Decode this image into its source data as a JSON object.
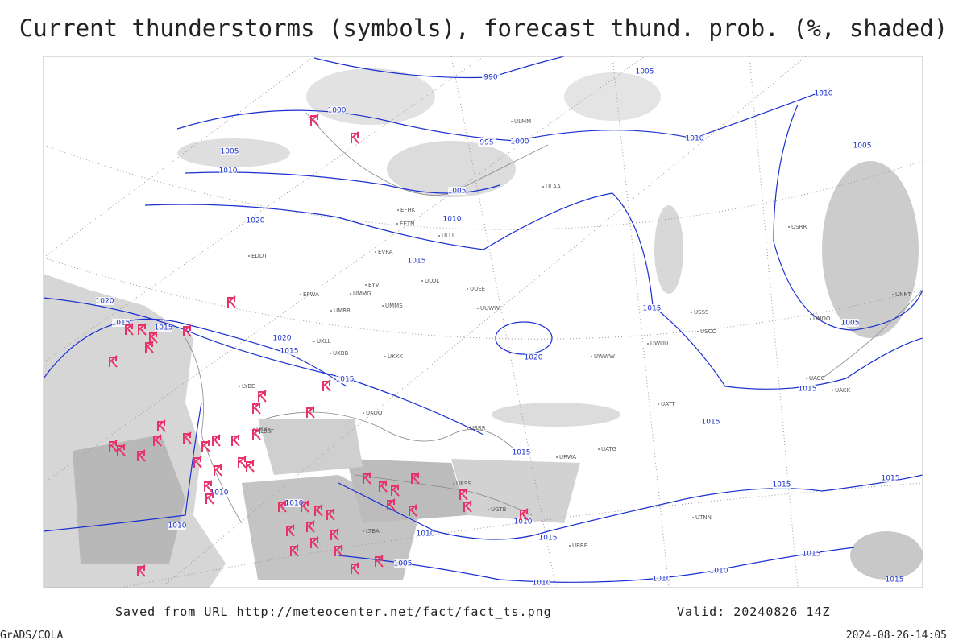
{
  "header": {
    "title": "Current thunderstorms (symbols), forecast thund. prob. (%, shaded)"
  },
  "footer": {
    "saved_from": "Saved from URL http://meteocenter.net/fact/fact_ts.png",
    "valid": "Valid: 20240826 14Z",
    "credit": "GrADS/COLA",
    "timestamp": "2024-08-26-14:05"
  },
  "isobar_labels": [
    "990",
    "1005",
    "1010",
    "1000",
    "1005",
    "995",
    "1000",
    "1010",
    "1005",
    "1010",
    "1005",
    "1010",
    "1020",
    "1015",
    "1020",
    "1015",
    "1015",
    "1020",
    "1015",
    "1020",
    "1015",
    "1015",
    "1005",
    "1015",
    "1015",
    "1015",
    "1015",
    "1010",
    "1010",
    "1010",
    "1010",
    "1015",
    "1005",
    "1010",
    "1010",
    "1010",
    "1015",
    "1015",
    "1015",
    "1010"
  ],
  "station_codes": [
    "ULLI",
    "ULAA",
    "EFHK",
    "EETN",
    "EVRA",
    "EYVI",
    "UMMG",
    "UMMS",
    "UMBB",
    "UUEE",
    "UUWW",
    "ULOL",
    "UKKK",
    "UKLL",
    "UKBB",
    "LRBS",
    "UKOO",
    "URSS",
    "UGTB",
    "UBBB",
    "UATT",
    "UACC",
    "UAKK",
    "UNNT",
    "USSS",
    "USCC",
    "UWWW",
    "UWUU",
    "URRR",
    "URWA",
    "LTBA",
    "LBSF",
    "LYBE",
    "EPWA",
    "EDDT",
    "ULMM",
    "USRR",
    "UNOO",
    "UATG",
    "UTNN"
  ]
}
